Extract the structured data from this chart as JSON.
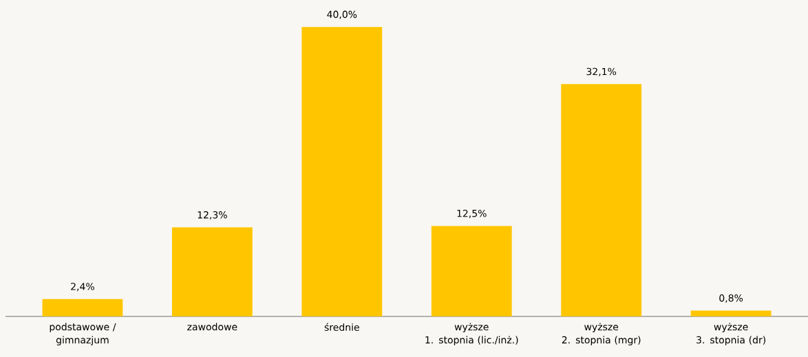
{
  "chart_data": {
    "type": "bar",
    "categories": [
      "podstawowe /\ngimnazjum",
      "zawodowe",
      "średnie",
      "wyższe\n1. stopnia (lic./inż.)",
      "wyższe\n2. stopnia (mgr)",
      "wyższe\n3. stopnia (dr)"
    ],
    "values": [
      2.4,
      12.3,
      40.0,
      12.5,
      32.1,
      0.8
    ],
    "value_labels": [
      "2,4%",
      "12,3%",
      "40,0%",
      "12,5%",
      "32,1%",
      "0,8%"
    ],
    "color": "#ffc600",
    "tick_labels": "x"
  }
}
